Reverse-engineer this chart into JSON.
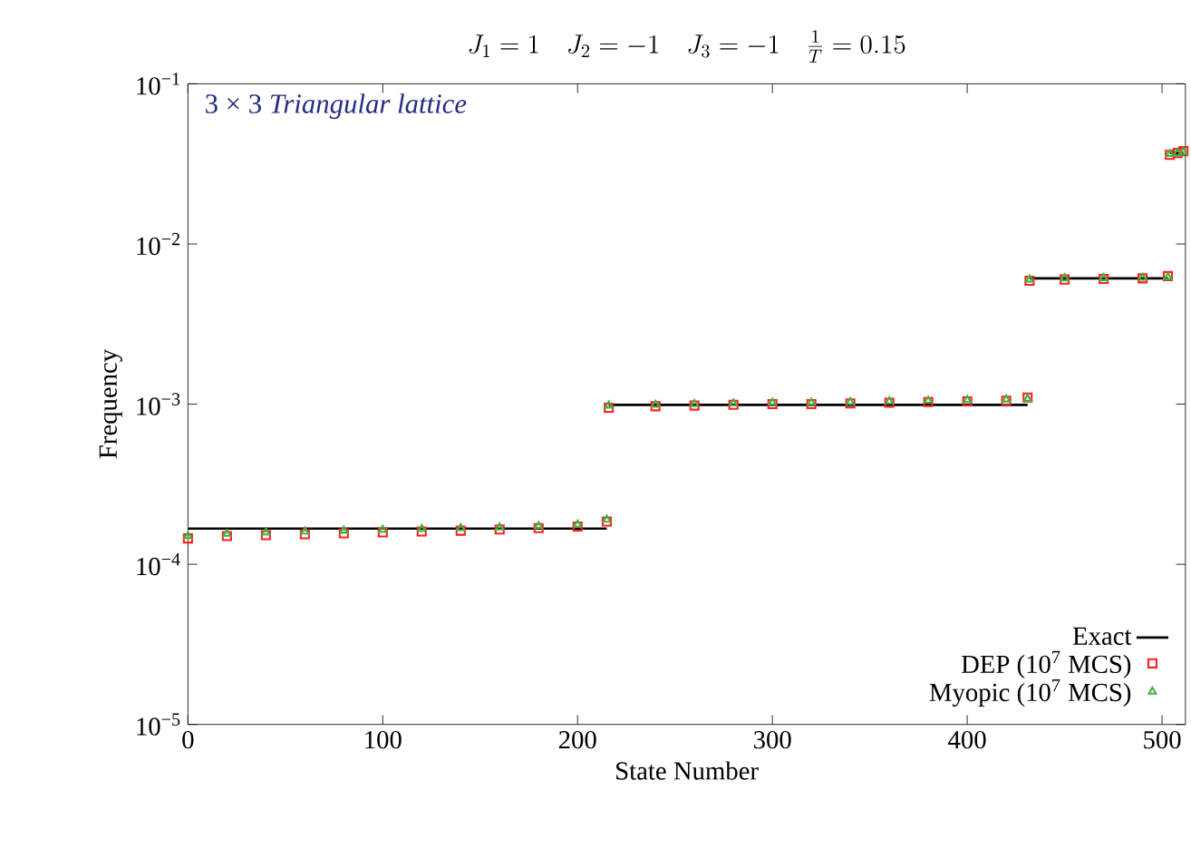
{
  "chart_data": {
    "type": "scatter",
    "title": "J_1 = 1 \\quad J_2 = -1 \\quad J_3 = -1 \\quad \\frac{1}{T} = 0.15",
    "xlabel": "State Number",
    "ylabel": "Frequency",
    "annotations": [
      "3 × 3 *Triangular lattice*"
    ],
    "xlim": [
      0,
      512
    ],
    "xticks": [
      0,
      100,
      200,
      300,
      400,
      500
    ],
    "ylim": [
      1e-05,
      0.1
    ],
    "log": "y",
    "yticks": [
      {
        "value": 1e-05,
        "label": "10$^{−5}$"
      },
      {
        "value": 0.0001,
        "label": "10$^{−4}$"
      },
      {
        "value": 0.001,
        "label": "10$^{−3}$"
      },
      {
        "value": 0.01,
        "label": "10$^{−2}$"
      },
      {
        "value": 0.1,
        "label": "10$^{−1}$"
      }
    ],
    "legend": "bottom right",
    "grid": false,
    "series": [
      {
        "name": "Exact",
        "type": "line",
        "color": "#000000",
        "marker": "none",
        "line_style": "solid",
        "x": [
          0,
          215,
          215.5,
          216,
          431,
          431.5,
          432,
          503,
          503.5,
          504,
          511
        ],
        "values": [
          0.000167,
          0.000167,
          null,
          0.00099,
          0.00099,
          null,
          0.0061,
          0.0061,
          null,
          0.037,
          0.037
        ]
      },
      {
        "name": "DEP (10$^{7}$ MCS)",
        "color": "#ff2020",
        "marker": "square",
        "x": [
          0,
          20,
          40,
          60,
          80,
          100,
          120,
          140,
          160,
          180,
          200,
          215,
          216,
          240,
          260,
          280,
          300,
          320,
          340,
          360,
          380,
          400,
          420,
          431,
          432,
          450,
          470,
          490,
          503,
          504,
          508,
          511
        ],
        "values": [
          0.000145,
          0.00015,
          0.000152,
          0.000154,
          0.000156,
          0.000158,
          0.00016,
          0.000162,
          0.000165,
          0.000168,
          0.000172,
          0.000185,
          0.00095,
          0.00097,
          0.00098,
          0.00099,
          0.001,
          0.001,
          0.00101,
          0.00102,
          0.00103,
          0.00104,
          0.00105,
          0.0011,
          0.0059,
          0.006,
          0.00605,
          0.0061,
          0.0063,
          0.036,
          0.037,
          0.038
        ]
      },
      {
        "name": "Myopic (10$^{7}$ MCS)",
        "color": "#40b040",
        "marker": "triangle",
        "x": [
          0,
          20,
          40,
          60,
          80,
          100,
          120,
          140,
          160,
          180,
          200,
          215,
          216,
          240,
          260,
          280,
          300,
          320,
          340,
          360,
          380,
          400,
          420,
          431,
          432,
          450,
          470,
          490,
          503,
          504,
          508,
          511
        ],
        "values": [
          0.00015,
          0.000155,
          0.000158,
          0.00016,
          0.000162,
          0.000164,
          0.000166,
          0.000168,
          0.00017,
          0.000173,
          0.000177,
          0.00019,
          0.00098,
          0.00099,
          0.001,
          0.00101,
          0.00102,
          0.00102,
          0.00103,
          0.00104,
          0.00105,
          0.00106,
          0.00107,
          0.00108,
          0.006,
          0.0061,
          0.00612,
          0.00615,
          0.0062,
          0.0365,
          0.037,
          0.0375
        ]
      }
    ]
  }
}
